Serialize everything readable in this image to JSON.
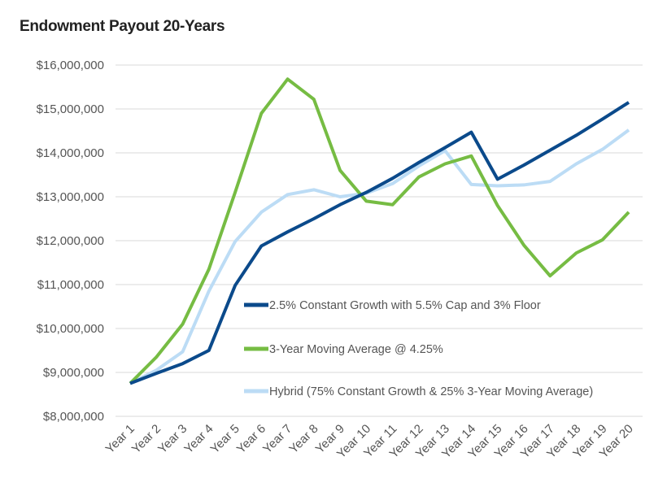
{
  "chart_data": {
    "type": "line",
    "title": "Endowment Payout 20-Years",
    "xlabel": "",
    "ylabel": "",
    "ylim": [
      8000000,
      16000000
    ],
    "ytick_labels": [
      "$8,000,000",
      "$9,000,000",
      "$10,000,000",
      "$11,000,000",
      "$12,000,000",
      "$13,000,000",
      "$14,000,000",
      "$15,000,000",
      "$16,000,000"
    ],
    "categories": [
      "Year 1",
      "Year 2",
      "Year 3",
      "Year 4",
      "Year 5",
      "Year 6",
      "Year 7",
      "Year 8",
      "Year 9",
      "Year 10",
      "Year 11",
      "Year 12",
      "Year 13",
      "Year 14",
      "Year 15",
      "Year 16",
      "Year 17",
      "Year 18",
      "Year 19",
      "Year 20"
    ],
    "grid": true,
    "legend_placement": "inside-center-bottom",
    "series": [
      {
        "name": "2.5% Constant Growth with 5.5% Cap and 3% Floor",
        "color": "#0b4a8b",
        "values": [
          8750000,
          8980000,
          9200000,
          9500000,
          10980000,
          11880000,
          12200000,
          12500000,
          12820000,
          13100000,
          13420000,
          13780000,
          14120000,
          14470000,
          13400000,
          13720000,
          14060000,
          14400000,
          14770000,
          15150000
        ]
      },
      {
        "name": "3-Year Moving Average @ 4.25%",
        "color": "#76bc43",
        "values": [
          8750000,
          9350000,
          10100000,
          11350000,
          13100000,
          14900000,
          15680000,
          15220000,
          13600000,
          12900000,
          12820000,
          13450000,
          13750000,
          13930000,
          12800000,
          11900000,
          11200000,
          11720000,
          12020000,
          12650000
        ]
      },
      {
        "name": "Hybrid (75% Constant Growth & 25% 3-Year Moving Average)",
        "color": "#bcdcf5",
        "values": [
          8750000,
          9050000,
          9470000,
          10850000,
          11980000,
          12650000,
          13050000,
          13160000,
          13000000,
          13080000,
          13300000,
          13700000,
          14050000,
          13280000,
          13250000,
          13270000,
          13350000,
          13750000,
          14080000,
          14520000
        ]
      }
    ]
  }
}
